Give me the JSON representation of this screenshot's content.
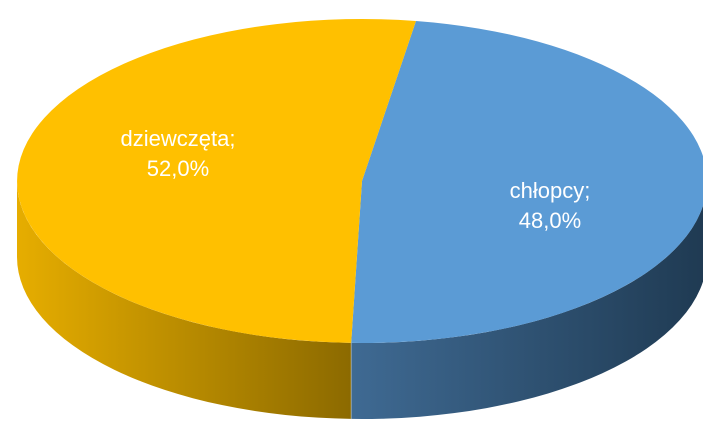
{
  "chart_data": {
    "type": "pie",
    "style": "3d",
    "slices": [
      {
        "name": "chłopcy",
        "value": 48.0,
        "label_name": "chłopcy;",
        "label_value": "48,0%",
        "color": "#5B9BD5",
        "side_color_dark": "#1F3A52",
        "side_color_light": "#3F6A93"
      },
      {
        "name": "dziewczęta",
        "value": 52.0,
        "label_name": "dziewczęta;",
        "label_value": "52,0%",
        "color": "#FFC000",
        "side_color_dark": "#8C6A00",
        "side_color_light": "#E6AD00"
      }
    ]
  }
}
